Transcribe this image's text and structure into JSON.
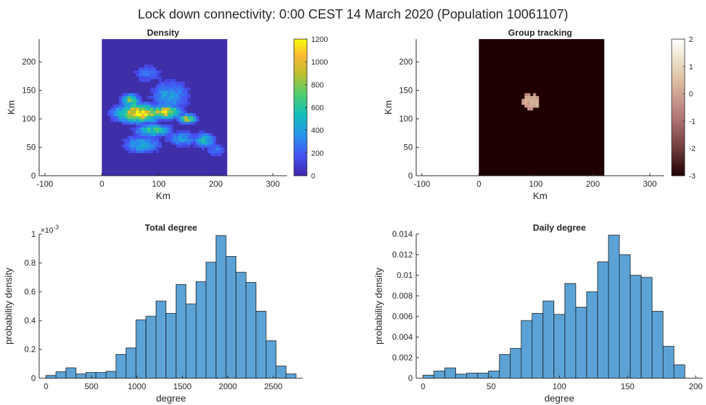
{
  "figure": {
    "title": "Lock down connectivity: 0:00 CEST 14 March 2020 (Population 10061107)"
  },
  "chart_data": [
    {
      "type": "heatmap",
      "title": "Density",
      "xlabel": "Km",
      "ylabel": "Km",
      "xlim": [
        -110,
        325
      ],
      "ylim": [
        0,
        240
      ],
      "xticks": [
        -100,
        0,
        100,
        200,
        300
      ],
      "yticks": [
        0,
        50,
        100,
        150,
        200
      ],
      "grid_extent": {
        "x": [
          0,
          220
        ],
        "y": [
          0,
          240
        ]
      },
      "colormap": "parula",
      "background_color": "#3e2ea8",
      "colorbar": {
        "min": 0,
        "max": 1200,
        "ticks": [
          0,
          200,
          400,
          600,
          800,
          1000,
          1200
        ]
      },
      "blobs": [
        {
          "cx": 65,
          "cy": 110,
          "rx": 35,
          "ry": 14,
          "value": 1150
        },
        {
          "cx": 110,
          "cy": 112,
          "rx": 25,
          "ry": 10,
          "value": 1050
        },
        {
          "cx": 150,
          "cy": 100,
          "rx": 14,
          "ry": 7,
          "value": 900
        },
        {
          "cx": 50,
          "cy": 132,
          "rx": 14,
          "ry": 10,
          "value": 800
        },
        {
          "cx": 90,
          "cy": 80,
          "rx": 28,
          "ry": 10,
          "value": 650
        },
        {
          "cx": 180,
          "cy": 62,
          "rx": 16,
          "ry": 12,
          "value": 550
        },
        {
          "cx": 120,
          "cy": 140,
          "rx": 30,
          "ry": 25,
          "value": 420
        },
        {
          "cx": 70,
          "cy": 55,
          "rx": 30,
          "ry": 14,
          "value": 450
        },
        {
          "cx": 140,
          "cy": 65,
          "rx": 25,
          "ry": 12,
          "value": 400
        },
        {
          "cx": 80,
          "cy": 180,
          "rx": 25,
          "ry": 16,
          "value": 250
        },
        {
          "cx": 200,
          "cy": 45,
          "rx": 15,
          "ry": 10,
          "value": 300
        }
      ]
    },
    {
      "type": "heatmap",
      "title": "Group tracking",
      "xlabel": "Km",
      "ylabel": "Km",
      "xlim": [
        -110,
        325
      ],
      "ylim": [
        0,
        240
      ],
      "xticks": [
        -100,
        0,
        100,
        200,
        300
      ],
      "yticks": [
        0,
        50,
        100,
        150,
        200
      ],
      "grid_extent": {
        "x": [
          0,
          220
        ],
        "y": [
          0,
          240
        ]
      },
      "colormap": "pink",
      "background_value": -3,
      "colorbar": {
        "min": -3,
        "max": 2,
        "ticks": [
          -3,
          -2,
          -1,
          0,
          1,
          2
        ]
      },
      "cells": [
        {
          "x": 80,
          "y": 140,
          "value": -0.6
        },
        {
          "x": 85,
          "y": 140,
          "value": -0.4
        },
        {
          "x": 95,
          "y": 140,
          "value": -0.5
        },
        {
          "x": 80,
          "y": 135,
          "value": 0.1
        },
        {
          "x": 85,
          "y": 135,
          "value": 0.2
        },
        {
          "x": 90,
          "y": 135,
          "value": 0.0
        },
        {
          "x": 95,
          "y": 135,
          "value": 0.2
        },
        {
          "x": 100,
          "y": 135,
          "value": 0.0
        },
        {
          "x": 75,
          "y": 130,
          "value": -0.3
        },
        {
          "x": 80,
          "y": 130,
          "value": 0.3
        },
        {
          "x": 85,
          "y": 130,
          "value": 0.1
        },
        {
          "x": 90,
          "y": 130,
          "value": 0.3
        },
        {
          "x": 95,
          "y": 130,
          "value": 0.1
        },
        {
          "x": 100,
          "y": 130,
          "value": 0.2
        },
        {
          "x": 75,
          "y": 125,
          "value": 0.0
        },
        {
          "x": 80,
          "y": 125,
          "value": 0.2
        },
        {
          "x": 85,
          "y": 125,
          "value": -0.2
        },
        {
          "x": 90,
          "y": 125,
          "value": 0.4
        },
        {
          "x": 95,
          "y": 125,
          "value": 0.2
        },
        {
          "x": 100,
          "y": 125,
          "value": 0.3
        },
        {
          "x": 80,
          "y": 120,
          "value": -0.2
        },
        {
          "x": 85,
          "y": 120,
          "value": 0.0
        },
        {
          "x": 90,
          "y": 120,
          "value": 0.1
        },
        {
          "x": 95,
          "y": 120,
          "value": 0.0
        },
        {
          "x": 100,
          "y": 120,
          "value": 0.2
        },
        {
          "x": 85,
          "y": 115,
          "value": -0.4
        },
        {
          "x": 90,
          "y": 115,
          "value": -0.5
        }
      ]
    },
    {
      "type": "bar",
      "title": "Total degree",
      "xlabel": "degree",
      "ylabel": "probability density",
      "exponent_label": "×10",
      "exponent_value": "-3",
      "xlim": [
        -75,
        2825
      ],
      "ylim": [
        0,
        1
      ],
      "xticks": [
        0,
        500,
        1000,
        1500,
        2000,
        2500
      ],
      "yticks": [
        0,
        0.2,
        0.4,
        0.6,
        0.8,
        1
      ],
      "ytick_labels": [
        "0",
        "0.2",
        "0.4",
        "0.6",
        "0.8",
        "1"
      ],
      "bin_edges": [
        0,
        110,
        220,
        330,
        440,
        550,
        660,
        770,
        880,
        990,
        1100,
        1210,
        1320,
        1430,
        1540,
        1650,
        1760,
        1870,
        1980,
        2090,
        2200,
        2310,
        2420,
        2530,
        2640,
        2750
      ],
      "values": [
        0.02,
        0.045,
        0.072,
        0.03,
        0.04,
        0.04,
        0.048,
        0.165,
        0.21,
        0.405,
        0.43,
        0.535,
        0.45,
        0.65,
        0.515,
        0.67,
        0.805,
        0.99,
        0.845,
        0.735,
        0.665,
        0.465,
        0.26,
        0.085,
        0.03
      ],
      "bar_color": "#5ba3d6"
    },
    {
      "type": "bar",
      "title": "Daily degree",
      "xlabel": "degree",
      "ylabel": "probability density",
      "xlim": [
        -5,
        205
      ],
      "ylim": [
        0,
        0.014
      ],
      "xticks": [
        0,
        50,
        100,
        150,
        200
      ],
      "yticks": [
        0,
        0.002,
        0.004,
        0.006,
        0.008,
        0.01,
        0.012,
        0.014
      ],
      "ytick_labels": [
        "0",
        "0.002",
        "0.004",
        "0.006",
        "0.008",
        "0.01",
        "0.012",
        "0.014"
      ],
      "bin_edges": [
        0,
        8,
        16,
        24,
        32,
        40,
        48,
        56,
        64,
        72,
        80,
        88,
        96,
        104,
        112,
        120,
        128,
        136,
        144,
        152,
        160,
        168,
        176,
        184,
        192
      ],
      "values": [
        0.0003,
        0.0007,
        0.001,
        0.0004,
        0.0005,
        0.0005,
        0.0007,
        0.0023,
        0.0029,
        0.0056,
        0.0063,
        0.0075,
        0.0062,
        0.0092,
        0.0069,
        0.0084,
        0.0113,
        0.0139,
        0.012,
        0.01,
        0.0098,
        0.0065,
        0.0031,
        0.0013,
        0.0003
      ],
      "bar_color": "#5ba3d6"
    }
  ]
}
